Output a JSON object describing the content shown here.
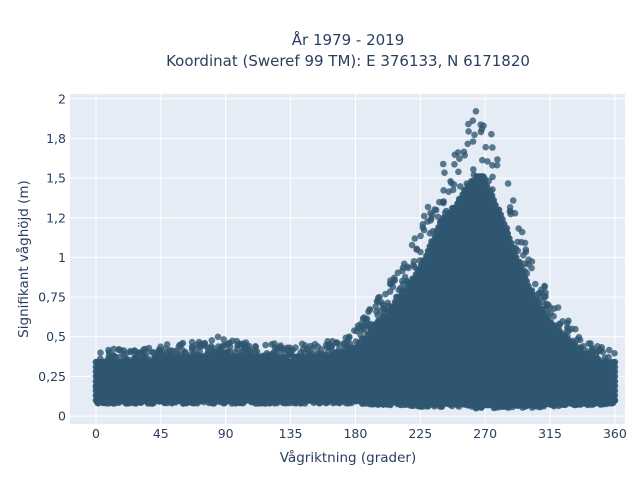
{
  "chart_data": {
    "type": "scatter",
    "title": [
      "År 1979 - 2019",
      "Koordinat (Sweref 99 TM): E 376133, N 6171820"
    ],
    "xlabel": "Vågriktning (grader)",
    "ylabel": "Signifikant våghöjd (m)",
    "xlim": [
      -18,
      367
    ],
    "ylim": [
      -0.05,
      2.03
    ],
    "x_ticks": [
      0,
      45,
      90,
      135,
      180,
      225,
      270,
      315,
      360
    ],
    "x_tick_labels": [
      "0",
      "45",
      "90",
      "135",
      "180",
      "225",
      "270",
      "315",
      "360"
    ],
    "y_ticks": [
      0,
      0.25,
      0.5,
      0.75,
      1,
      1.25,
      1.5,
      1.75,
      2
    ],
    "y_tick_labels": [
      "0",
      "0,25",
      "0,5",
      "0,75",
      "1",
      "1,2",
      "1,5",
      "1,8",
      "2"
    ],
    "grid": true,
    "marker_color": "#2f5670",
    "plot_background": "#e5ecf6",
    "envelope": {
      "direction": [
        0,
        20,
        45,
        80,
        85,
        90,
        135,
        160,
        180,
        200,
        215,
        225,
        240,
        250,
        260,
        268,
        272,
        280,
        290,
        300,
        315,
        330,
        345,
        360
      ],
      "min_height": [
        0.08,
        0.08,
        0.08,
        0.08,
        0.08,
        0.08,
        0.08,
        0.08,
        0.08,
        0.07,
        0.07,
        0.06,
        0.06,
        0.06,
        0.05,
        0.05,
        0.05,
        0.05,
        0.05,
        0.05,
        0.06,
        0.07,
        0.07,
        0.08
      ],
      "max_height": [
        0.43,
        0.42,
        0.45,
        0.48,
        0.53,
        0.48,
        0.45,
        0.47,
        0.55,
        0.8,
        1.02,
        1.2,
        1.58,
        1.7,
        1.9,
        1.95,
        1.85,
        1.65,
        1.35,
        1.05,
        0.75,
        0.58,
        0.45,
        0.43
      ]
    }
  }
}
